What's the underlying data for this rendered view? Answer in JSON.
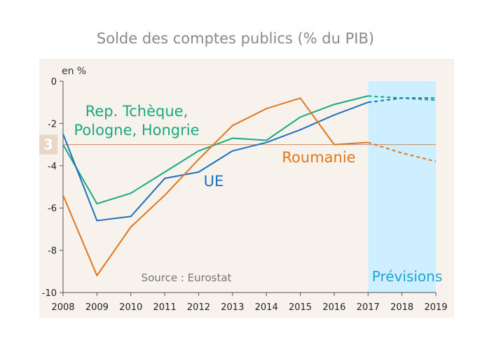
{
  "chart_data": {
    "type": "line",
    "title": "Solde des comptes publics (% du PIB)",
    "ylabel": "en %",
    "xlabel": "",
    "ylim": [
      -10,
      0
    ],
    "yticks": [
      0,
      -2,
      -4,
      -6,
      -8,
      -10
    ],
    "x": [
      "2008",
      "2009",
      "2010",
      "2011",
      "2012",
      "2013",
      "2014",
      "2015",
      "2016",
      "2017",
      "2018",
      "2019"
    ],
    "forecast_from": "2017",
    "forecast_label": "Prévisions",
    "reference_line": {
      "value": -3,
      "label": "3"
    },
    "source": "Source : Eurostat",
    "series": [
      {
        "name": "Rep. Tchèque,\nPologne, Hongrie",
        "label_lines": [
          "Rep. Tchèque,",
          "Pologne, Hongrie"
        ],
        "color": "#1aa880",
        "values": [
          -3.0,
          -5.8,
          -5.3,
          -4.3,
          -3.3,
          -2.7,
          -2.8,
          -1.7,
          -1.1,
          -0.7,
          -0.8,
          -0.9
        ]
      },
      {
        "name": "UE",
        "label_lines": [
          "UE"
        ],
        "color": "#1f6fbf",
        "values": [
          -2.5,
          -6.6,
          -6.4,
          -4.6,
          -4.3,
          -3.3,
          -2.9,
          -2.3,
          -1.6,
          -1.0,
          -0.8,
          -0.8
        ]
      },
      {
        "name": "Roumanie",
        "label_lines": [
          "Roumanie"
        ],
        "color": "#e0761e",
        "values": [
          -5.4,
          -9.2,
          -6.9,
          -5.4,
          -3.7,
          -2.1,
          -1.3,
          -0.8,
          -3.0,
          -2.9,
          -3.4,
          -3.8
        ]
      }
    ],
    "grid": false,
    "legend": "inline labels"
  }
}
